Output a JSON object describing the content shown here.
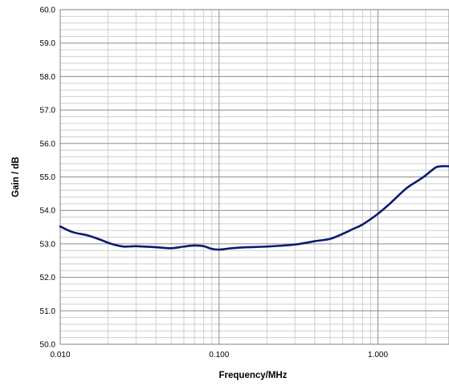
{
  "chart_data": {
    "type": "line",
    "title": "",
    "xlabel": "Frequency/MHz",
    "ylabel": "Gain / dB",
    "x_scale": "log",
    "xlim": [
      0.01,
      2.8
    ],
    "ylim": [
      50.0,
      60.0
    ],
    "x_ticks": [
      {
        "value": 0.01,
        "label": "0.010"
      },
      {
        "value": 0.1,
        "label": "0.100"
      },
      {
        "value": 1,
        "label": "1.000"
      }
    ],
    "y_ticks": [
      {
        "value": 50,
        "label": "50.0"
      },
      {
        "value": 51,
        "label": "51.0"
      },
      {
        "value": 52,
        "label": "52.0"
      },
      {
        "value": 53,
        "label": "53.0"
      },
      {
        "value": 54,
        "label": "54.0"
      },
      {
        "value": 55,
        "label": "55.0"
      },
      {
        "value": 56,
        "label": "56.0"
      },
      {
        "value": 57,
        "label": "57.0"
      },
      {
        "value": 58,
        "label": "58.0"
      },
      {
        "value": 59,
        "label": "59.0"
      },
      {
        "value": 60,
        "label": "60.0"
      }
    ],
    "grid": true,
    "legend": "none",
    "series": [
      {
        "color": "#0d1a6e",
        "x": [
          0.01,
          0.012,
          0.015,
          0.018,
          0.021,
          0.025,
          0.03,
          0.04,
          0.05,
          0.06,
          0.07,
          0.08,
          0.09,
          0.1,
          0.12,
          0.15,
          0.2,
          0.3,
          0.4,
          0.5,
          0.6,
          0.7,
          0.8,
          1.0,
          1.2,
          1.5,
          1.8,
          2.0,
          2.3,
          2.5,
          2.8
        ],
        "y": [
          53.52,
          53.35,
          53.25,
          53.12,
          53.0,
          52.92,
          52.93,
          52.9,
          52.87,
          52.92,
          52.95,
          52.93,
          52.85,
          52.83,
          52.87,
          52.9,
          52.92,
          52.98,
          53.08,
          53.15,
          53.3,
          53.45,
          53.58,
          53.9,
          54.22,
          54.65,
          54.9,
          55.05,
          55.28,
          55.32,
          55.32
        ]
      }
    ]
  }
}
